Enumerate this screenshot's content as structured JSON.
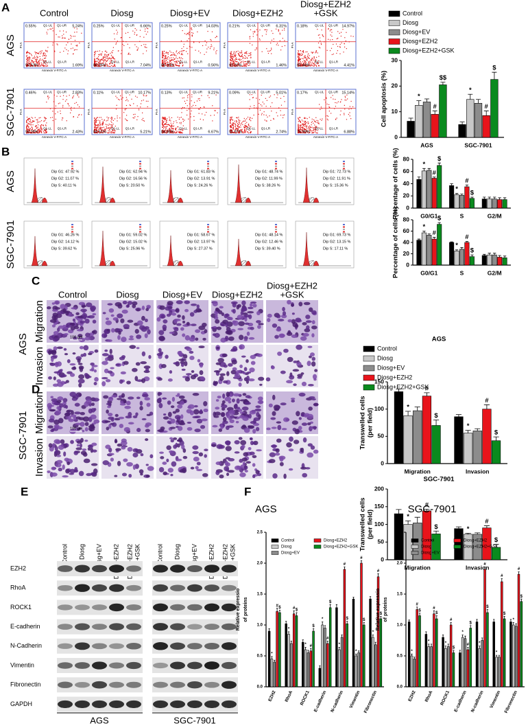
{
  "panel_labels": [
    "A",
    "B",
    "C",
    "D",
    "E",
    "F"
  ],
  "group_headers": [
    [
      "Control"
    ],
    [
      "Diosg"
    ],
    [
      "Diosg+EV"
    ],
    [
      "Diosg+EZH2"
    ],
    [
      "Diosg+EZH2",
      "+GSK"
    ]
  ],
  "cell_lines": [
    "AGS",
    "SGC-7901"
  ],
  "flow": {
    "x_label": "Annexin V-FITC-A",
    "y_label": "PI-A",
    "quadrants": [
      "Q1-UL",
      "Q1-UR",
      "Q1-LL",
      "Q1-LR"
    ],
    "plots": [
      [
        [
          "0.55%",
          "5.24%",
          "93.53%",
          "1.69%"
        ],
        [
          "0.25%",
          "6.66%",
          "86.05%",
          "7.04%"
        ],
        [
          "0.25%",
          "14.03%",
          "85.16%",
          "0.56%"
        ],
        [
          "0.21%",
          "6.31%",
          "92.02%",
          "1.46%"
        ],
        [
          "0.18%",
          "14.97%",
          "80.44%",
          "4.41%"
        ]
      ],
      [
        [
          "0.46%",
          "2.83%",
          "94.28%",
          "2.43%"
        ],
        [
          "0.11%",
          "10.17%",
          "84.51%",
          "5.21%"
        ],
        [
          "0.13%",
          "9.21%",
          "84.95%",
          "6.67%"
        ],
        [
          "0.09%",
          "5.01%",
          "91.97%",
          "2.74%"
        ],
        [
          "0.17%",
          "15.14%",
          "76.99%",
          "6.88%"
        ]
      ]
    ]
  },
  "cell_cycle": {
    "plots": [
      [
        [
          "Dip G1: 47.92 %",
          "Dip G2: 11.07 %",
          "Dip S: 40.11 %"
        ],
        [
          "Dip G1: 62.94 %",
          "Dip G2: 16.56 %",
          "Dip S: 20.50 %"
        ],
        [
          "Dip G1: 61.83 %",
          "Dip G2: 13.91 %",
          "Dip S: 24.26 %"
        ],
        [
          "Dip G1: 48.74 %",
          "Dip G2: 11.99 %",
          "Dip S: 38.26 %"
        ],
        [
          "Dip G1: 72.73 %",
          "Dip G2: 11.91 %",
          "Dip S: 15.36 %"
        ]
      ],
      [
        [
          "Dip G1: 46.26 %",
          "Dip G2: 14.12 %",
          "Dip S: 39.62 %"
        ],
        [
          "Dip G1: 59.02 %",
          "Dip G2: 15.02 %",
          "Dip S: 25.96 %"
        ],
        [
          "Dip G1: 58.67 %",
          "Dip G2: 13.97 %",
          "Dip S: 27.37 %"
        ],
        [
          "Dip G1: 48.14 %",
          "Dip G2: 12.46 %",
          "Dip S: 39.40 %"
        ],
        [
          "Dip G1: 69.73 %",
          "Dip G2: 13.15 %",
          "Dip S: 17.11 %"
        ]
      ]
    ]
  },
  "transwell": {
    "rows": [
      "Migration",
      "Invasion"
    ],
    "scale_label": "100 μm"
  },
  "western": {
    "proteins": [
      "EZH2",
      "RhoA",
      "ROCK1",
      "E-cadherin",
      "N-Cadherin",
      "Vimentin",
      "Fibronectin",
      "GAPDH"
    ]
  },
  "chart_data": [
    {
      "type": "bar",
      "ylabel": [
        "Cell apoptosis (%)"
      ],
      "legend": "above",
      "categories": [
        "AGS",
        "SGC-7901"
      ],
      "ylim": [
        0,
        30
      ],
      "yticks": [
        0,
        10,
        20,
        30
      ],
      "series": [
        {
          "name": "Control",
          "color": "#000000",
          "values": [
            6.3,
            5.0
          ],
          "errors": [
            1.2,
            1.0
          ],
          "annotations": [
            null,
            null
          ]
        },
        {
          "name": "Diosg",
          "color": "#c8c8c8",
          "values": [
            12.5,
            14.8
          ],
          "errors": [
            1.8,
            2.0
          ],
          "annotations": [
            "*",
            "*"
          ]
        },
        {
          "name": "Diosg+EV",
          "color": "#8c8c8c",
          "values": [
            13.8,
            13.3
          ],
          "errors": [
            1.2,
            1.5
          ],
          "annotations": [
            null,
            null
          ]
        },
        {
          "name": "Diosg+EZH2",
          "color": "#e8141b",
          "values": [
            9.0,
            8.5
          ],
          "errors": [
            1.3,
            1.8
          ],
          "annotations": [
            "#",
            "#"
          ]
        },
        {
          "name": "Diosg+EZH2+GSK",
          "color": "#0a8a1e",
          "values": [
            20.5,
            22.6
          ],
          "errors": [
            1.0,
            2.8
          ],
          "annotations": [
            "$$",
            "$"
          ]
        }
      ]
    },
    {
      "type": "bar",
      "ylabel": [
        "Percentage of cells (%)"
      ],
      "categories": [
        "G0/G1",
        "S",
        "G2/M"
      ],
      "ylim": [
        0,
        80
      ],
      "yticks": [
        0,
        20,
        40,
        60,
        80
      ],
      "series": [
        {
          "color": "#000000",
          "values": [
            47,
            37,
            15
          ],
          "errors": [
            4,
            3,
            3
          ],
          "annotations": [
            null,
            null,
            null
          ]
        },
        {
          "color": "#c8c8c8",
          "values": [
            61,
            22,
            15
          ],
          "errors": [
            4,
            2,
            3
          ],
          "annotations": [
            "*",
            "*",
            null
          ]
        },
        {
          "color": "#8c8c8c",
          "values": [
            62,
            21,
            15
          ],
          "errors": [
            3,
            2,
            3
          ],
          "annotations": [
            null,
            null,
            null
          ]
        },
        {
          "color": "#e8141b",
          "values": [
            49,
            35,
            14
          ],
          "errors": [
            2,
            3,
            3
          ],
          "annotations": [
            "#",
            "#",
            null
          ]
        },
        {
          "color": "#0a8a1e",
          "values": [
            70,
            16,
            14
          ],
          "errors": [
            4,
            2,
            3
          ],
          "annotations": [
            "$",
            "$",
            null
          ]
        }
      ]
    },
    {
      "type": "bar",
      "ylabel": [
        "Percentage of cells (%)"
      ],
      "categories": [
        "G0/G1",
        "S",
        "G2/M"
      ],
      "ylim": [
        0,
        80
      ],
      "yticks": [
        0,
        20,
        40,
        60,
        80
      ],
      "series": [
        {
          "color": "#000000",
          "values": [
            44,
            40,
            17
          ],
          "errors": [
            2,
            1,
            2
          ],
          "annotations": [
            null,
            null,
            null
          ]
        },
        {
          "color": "#c8c8c8",
          "values": [
            57,
            25,
            18
          ],
          "errors": [
            3,
            2,
            3
          ],
          "annotations": [
            "*",
            "*",
            null
          ]
        },
        {
          "color": "#8c8c8c",
          "values": [
            53,
            28,
            18
          ],
          "errors": [
            2,
            3,
            3
          ],
          "annotations": [
            null,
            null,
            null
          ]
        },
        {
          "color": "#e8141b",
          "values": [
            46,
            40,
            14
          ],
          "errors": [
            3,
            2,
            3
          ],
          "annotations": [
            "#",
            "#",
            null
          ]
        },
        {
          "color": "#0a8a1e",
          "values": [
            72,
            15,
            13
          ],
          "errors": [
            3,
            3,
            3
          ],
          "annotations": [
            "$",
            "$",
            null
          ]
        }
      ]
    },
    {
      "type": "bar",
      "title": "AGS",
      "ylabel": [
        "Transwelled cells",
        "(per field)"
      ],
      "legend": "above",
      "categories": [
        "Migration",
        "Invasion"
      ],
      "ylim": [
        0,
        150
      ],
      "yticks": [
        0,
        50,
        100,
        150
      ],
      "series": [
        {
          "name": "Control",
          "color": "#000000",
          "values": [
            132,
            86
          ],
          "errors": [
            5,
            4
          ],
          "annotations": [
            null,
            null
          ]
        },
        {
          "name": "Diosg",
          "color": "#c8c8c8",
          "values": [
            88,
            56
          ],
          "errors": [
            8,
            5
          ],
          "annotations": [
            "*",
            "*"
          ]
        },
        {
          "name": "Diosg+EV",
          "color": "#8c8c8c",
          "values": [
            97,
            60
          ],
          "errors": [
            7,
            4
          ],
          "annotations": [
            null,
            null
          ]
        },
        {
          "name": "Diosg+EZH2",
          "color": "#e8141b",
          "values": [
            124,
            100
          ],
          "errors": [
            6,
            8
          ],
          "annotations": [
            "#",
            "#"
          ]
        },
        {
          "name": "Diosg+EZH2+GSK",
          "color": "#0a8a1e",
          "values": [
            70,
            42
          ],
          "errors": [
            10,
            7
          ],
          "annotations": [
            "$",
            "$"
          ]
        }
      ]
    },
    {
      "type": "bar",
      "title": "SGC-7901",
      "ylabel": [
        "Transwelled cells",
        "(per field)"
      ],
      "categories": [
        "Migration",
        "Invasion"
      ],
      "ylim": [
        0,
        200
      ],
      "yticks": [
        0,
        50,
        100,
        150,
        200
      ],
      "series": [
        {
          "color": "#000000",
          "values": [
            130,
            88
          ],
          "errors": [
            12,
            5
          ],
          "annotations": [
            null,
            null
          ]
        },
        {
          "color": "#c8c8c8",
          "values": [
            100,
            72
          ],
          "errors": [
            10,
            3
          ],
          "annotations": [
            "*",
            "*"
          ]
        },
        {
          "color": "#8c8c8c",
          "values": [
            104,
            72
          ],
          "errors": [
            16,
            4
          ],
          "annotations": [
            null,
            null
          ]
        },
        {
          "color": "#e8141b",
          "values": [
            138,
            90
          ],
          "errors": [
            5,
            6
          ],
          "annotations": [
            "#",
            "#"
          ]
        },
        {
          "color": "#0a8a1e",
          "values": [
            73,
            35
          ],
          "errors": [
            8,
            9
          ],
          "annotations": [
            "$",
            "$"
          ]
        }
      ]
    },
    {
      "type": "bar",
      "title": "AGS",
      "ylabel": [
        "Relative expressio",
        "of proteins"
      ],
      "legend": "inside",
      "categories": [
        "EZH2",
        "RhoA",
        "ROCK1",
        "E-cadherin",
        "N-cadherin",
        "Vimentin",
        "Fibronectin"
      ],
      "ylim": [
        0,
        2.5
      ],
      "yticks": [
        {
          "value": 0,
          "label": "0.0"
        },
        0.5,
        {
          "value": 1,
          "label": "1.0"
        },
        1.5,
        {
          "value": 2,
          "label": "2.0"
        },
        2.5
      ],
      "series": [
        {
          "name": "Control",
          "color": "#000000",
          "values": [
            0.9,
            1.02,
            0.72,
            0.3,
            1.28,
            1.42,
            1.42
          ],
          "errors": [
            0.04,
            0.04,
            0.04,
            0.04,
            0.05,
            0.03,
            0.04
          ],
          "annotations": [
            null,
            null,
            null,
            null,
            null,
            null,
            null
          ]
        },
        {
          "name": "Diosg",
          "color": "#c8c8c8",
          "values": [
            0.45,
            0.85,
            0.6,
            1.0,
            0.6,
            0.5,
            0.8
          ],
          "errors": [
            0.04,
            0.04,
            0.04,
            0.05,
            0.04,
            0.03,
            0.04
          ],
          "annotations": [
            "*",
            "*",
            "*",
            "*",
            "*",
            "*",
            "*"
          ]
        },
        {
          "name": "Diosg+EV",
          "color": "#8c8c8c",
          "values": [
            0.4,
            0.7,
            0.55,
            0.95,
            0.8,
            0.55,
            0.68
          ],
          "errors": [
            0.03,
            0.04,
            0.04,
            0.04,
            0.04,
            0.03,
            0.04
          ],
          "annotations": [
            null,
            null,
            null,
            null,
            null,
            null,
            null
          ]
        },
        {
          "name": "Diosg+EZH2",
          "color": "#e8141b",
          "values": [
            1.22,
            1.18,
            0.58,
            0.7,
            1.9,
            2.0,
            1.78
          ],
          "errors": [
            0.05,
            0.05,
            0.04,
            0.04,
            0.04,
            0.04,
            0.05
          ],
          "annotations": [
            "#",
            "#",
            "#",
            "#",
            "#",
            "#",
            "#"
          ]
        },
        {
          "name": "Diosg+EZH2+GSK",
          "color": "#0a8a1e",
          "values": [
            1.2,
            1.15,
            0.9,
            1.28,
            1.02,
            1.0,
            1.1
          ],
          "errors": [
            0.04,
            0.05,
            0.04,
            0.05,
            0.04,
            0.04,
            0.04
          ],
          "annotations": [
            "$",
            "$",
            "$",
            "$",
            "$",
            "$",
            "$"
          ]
        }
      ]
    },
    {
      "type": "bar",
      "title": "SGC-7901",
      "ylabel": [
        "Relative expressio",
        "of proteins"
      ],
      "legend": "inside",
      "categories": [
        "EZH2",
        "RhoA",
        "ROCK1",
        "E-cadherin",
        "N-cadherin",
        "Vimentin",
        "Fibronectin"
      ],
      "ylim": [
        0,
        2.5
      ],
      "yticks": [
        {
          "value": 0,
          "label": "0.0"
        },
        0.5,
        {
          "value": 1,
          "label": "1.0"
        },
        1.5,
        {
          "value": 2,
          "label": "2.0"
        },
        2.5
      ],
      "series": [
        {
          "name": "Control",
          "color": "#000000",
          "values": [
            1.05,
            0.85,
            0.8,
            0.55,
            1.05,
            1.05,
            1.05
          ],
          "errors": [
            0.03,
            0.04,
            0.04,
            0.04,
            0.04,
            0.04,
            0.04
          ],
          "annotations": [
            null,
            null,
            null,
            null,
            null,
            null,
            null
          ]
        },
        {
          "name": "Diosg",
          "color": "#c8c8c8",
          "values": [
            0.5,
            0.65,
            0.62,
            0.8,
            0.62,
            0.48,
            1.0
          ],
          "errors": [
            0.03,
            0.04,
            0.04,
            0.04,
            0.04,
            0.03,
            0.04
          ],
          "annotations": [
            "*",
            "*",
            "*",
            "*",
            "*",
            "*",
            "*"
          ]
        },
        {
          "name": "Diosg+EV",
          "color": "#8c8c8c",
          "values": [
            0.45,
            0.65,
            0.65,
            0.78,
            0.75,
            0.48,
            0.98
          ],
          "errors": [
            0.03,
            0.04,
            0.04,
            0.04,
            0.04,
            0.03,
            0.04
          ],
          "annotations": [
            null,
            null,
            null,
            null,
            null,
            null,
            null
          ]
        },
        {
          "name": "Diosg+EZH2",
          "color": "#e8141b",
          "values": [
            1.25,
            1.18,
            1.0,
            0.6,
            1.9,
            1.7,
            1.82
          ],
          "errors": [
            0.04,
            0.05,
            0.04,
            0.04,
            0.04,
            0.05,
            0.04
          ],
          "annotations": [
            "#",
            "#",
            "#",
            "#",
            "#",
            "#",
            "#"
          ]
        },
        {
          "name": "Diosg+EZH2+GSK",
          "color": "#0a8a1e",
          "values": [
            1.15,
            1.1,
            0.55,
            0.95,
            1.2,
            1.1,
            1.38
          ],
          "errors": [
            0.04,
            0.05,
            0.04,
            0.04,
            0.05,
            0.04,
            0.04
          ],
          "annotations": [
            "$",
            "$",
            "$",
            "$",
            "$",
            "$",
            "$"
          ]
        }
      ]
    }
  ]
}
